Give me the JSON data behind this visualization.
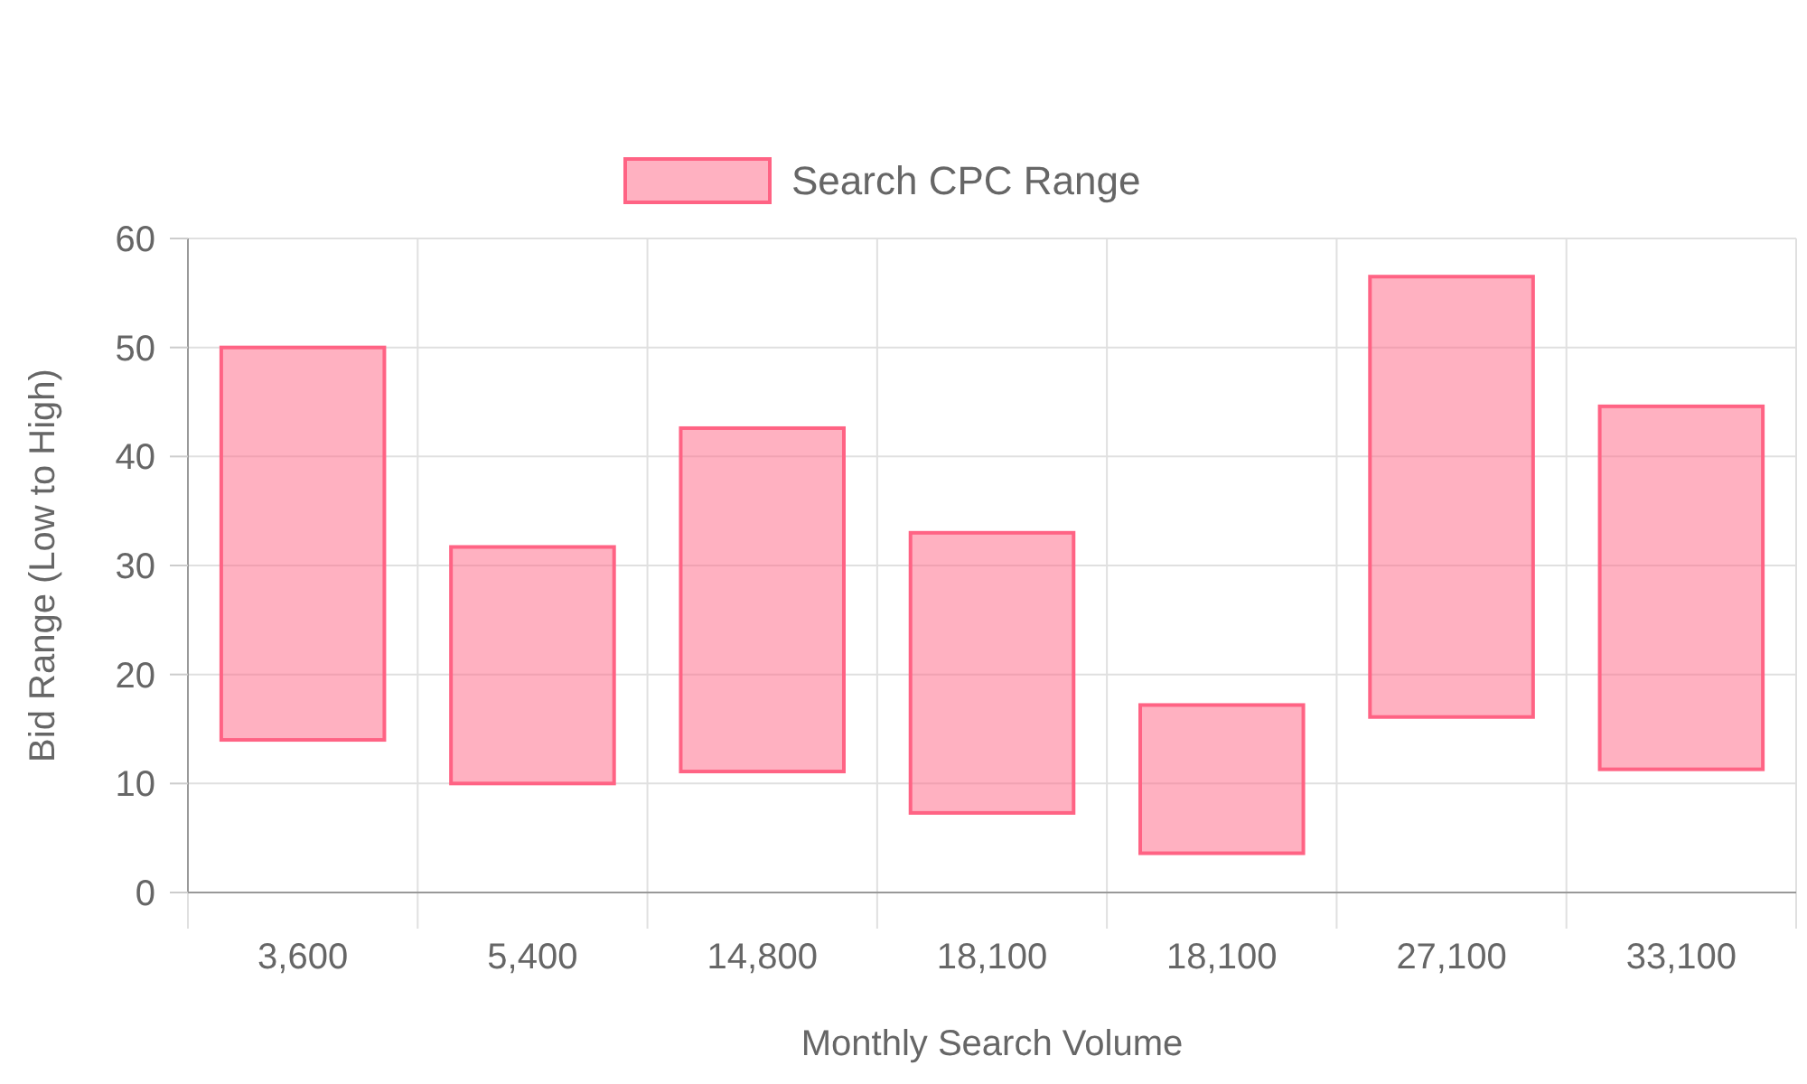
{
  "chart_data": {
    "type": "bar",
    "xlabel": "Monthly Search Volume",
    "ylabel": "Bid Range (Low to High)",
    "categories": [
      "3,600",
      "5,400",
      "14,800",
      "18,100",
      "18,100",
      "27,100",
      "33,100"
    ],
    "series": [
      {
        "name": "Search CPC Range",
        "color": "#ff6384",
        "values": [
          36,
          21.7,
          31.5,
          25.7,
          13.6,
          40.4,
          33.3
        ],
        "base": [
          14,
          10,
          11.1,
          7.3,
          3.6,
          16.1,
          11.3
        ]
      }
    ],
    "ylim": [
      0,
      60
    ],
    "yticks": [
      0,
      10,
      20,
      30,
      40,
      50,
      60
    ],
    "grid": true,
    "legend": "top"
  }
}
